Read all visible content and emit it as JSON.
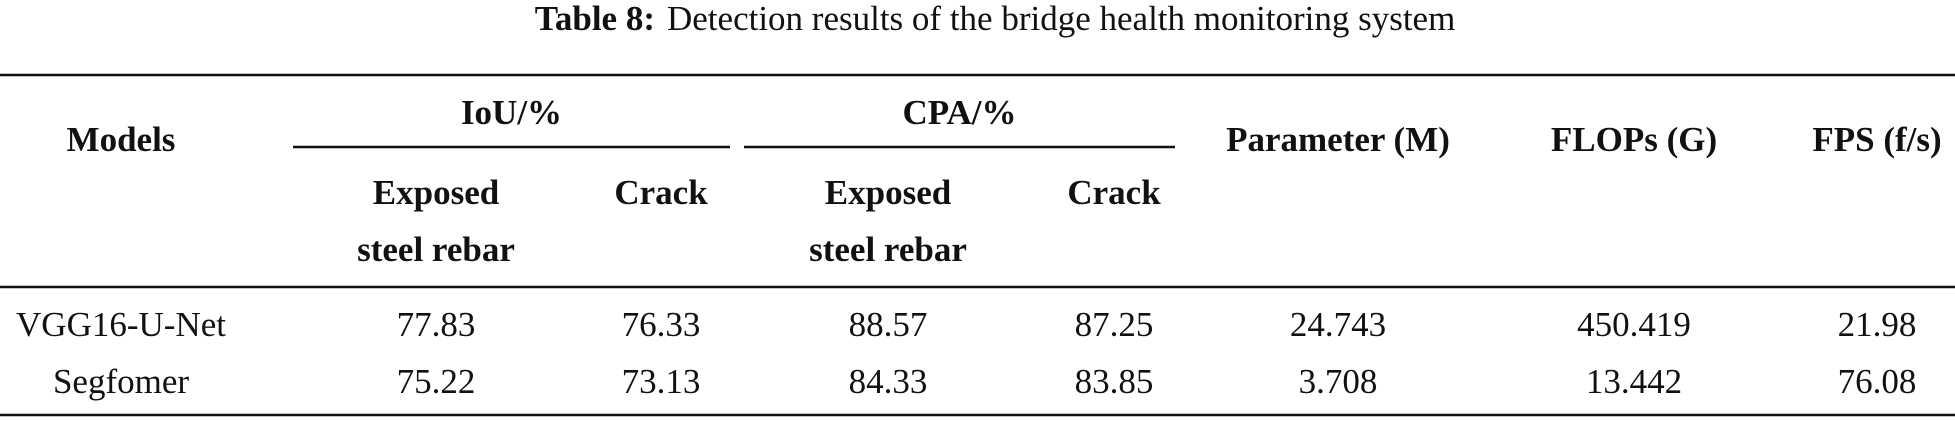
{
  "caption": {
    "label": "Table 8:",
    "text": "Detection results of the bridge health monitoring system"
  },
  "table": {
    "header": {
      "models": "Models",
      "groups": [
        {
          "label": "IoU/%",
          "columns": [
            [
              "Exposed",
              "steel rebar"
            ],
            [
              "Crack"
            ]
          ]
        },
        {
          "label": "CPA/%",
          "columns": [
            [
              "Exposed",
              "steel rebar"
            ],
            [
              "Crack"
            ]
          ]
        }
      ],
      "others": [
        "Parameter (M)",
        "FLOPs (G)",
        "FPS (f/s)"
      ]
    },
    "rows": [
      [
        "VGG16-U-Net",
        "77.83",
        "76.33",
        "88.57",
        "87.25",
        "24.743",
        "450.419",
        "21.98"
      ],
      [
        "Segfomer",
        "75.22",
        "73.13",
        "84.33",
        "83.85",
        "3.708",
        "13.442",
        "76.08"
      ]
    ]
  }
}
